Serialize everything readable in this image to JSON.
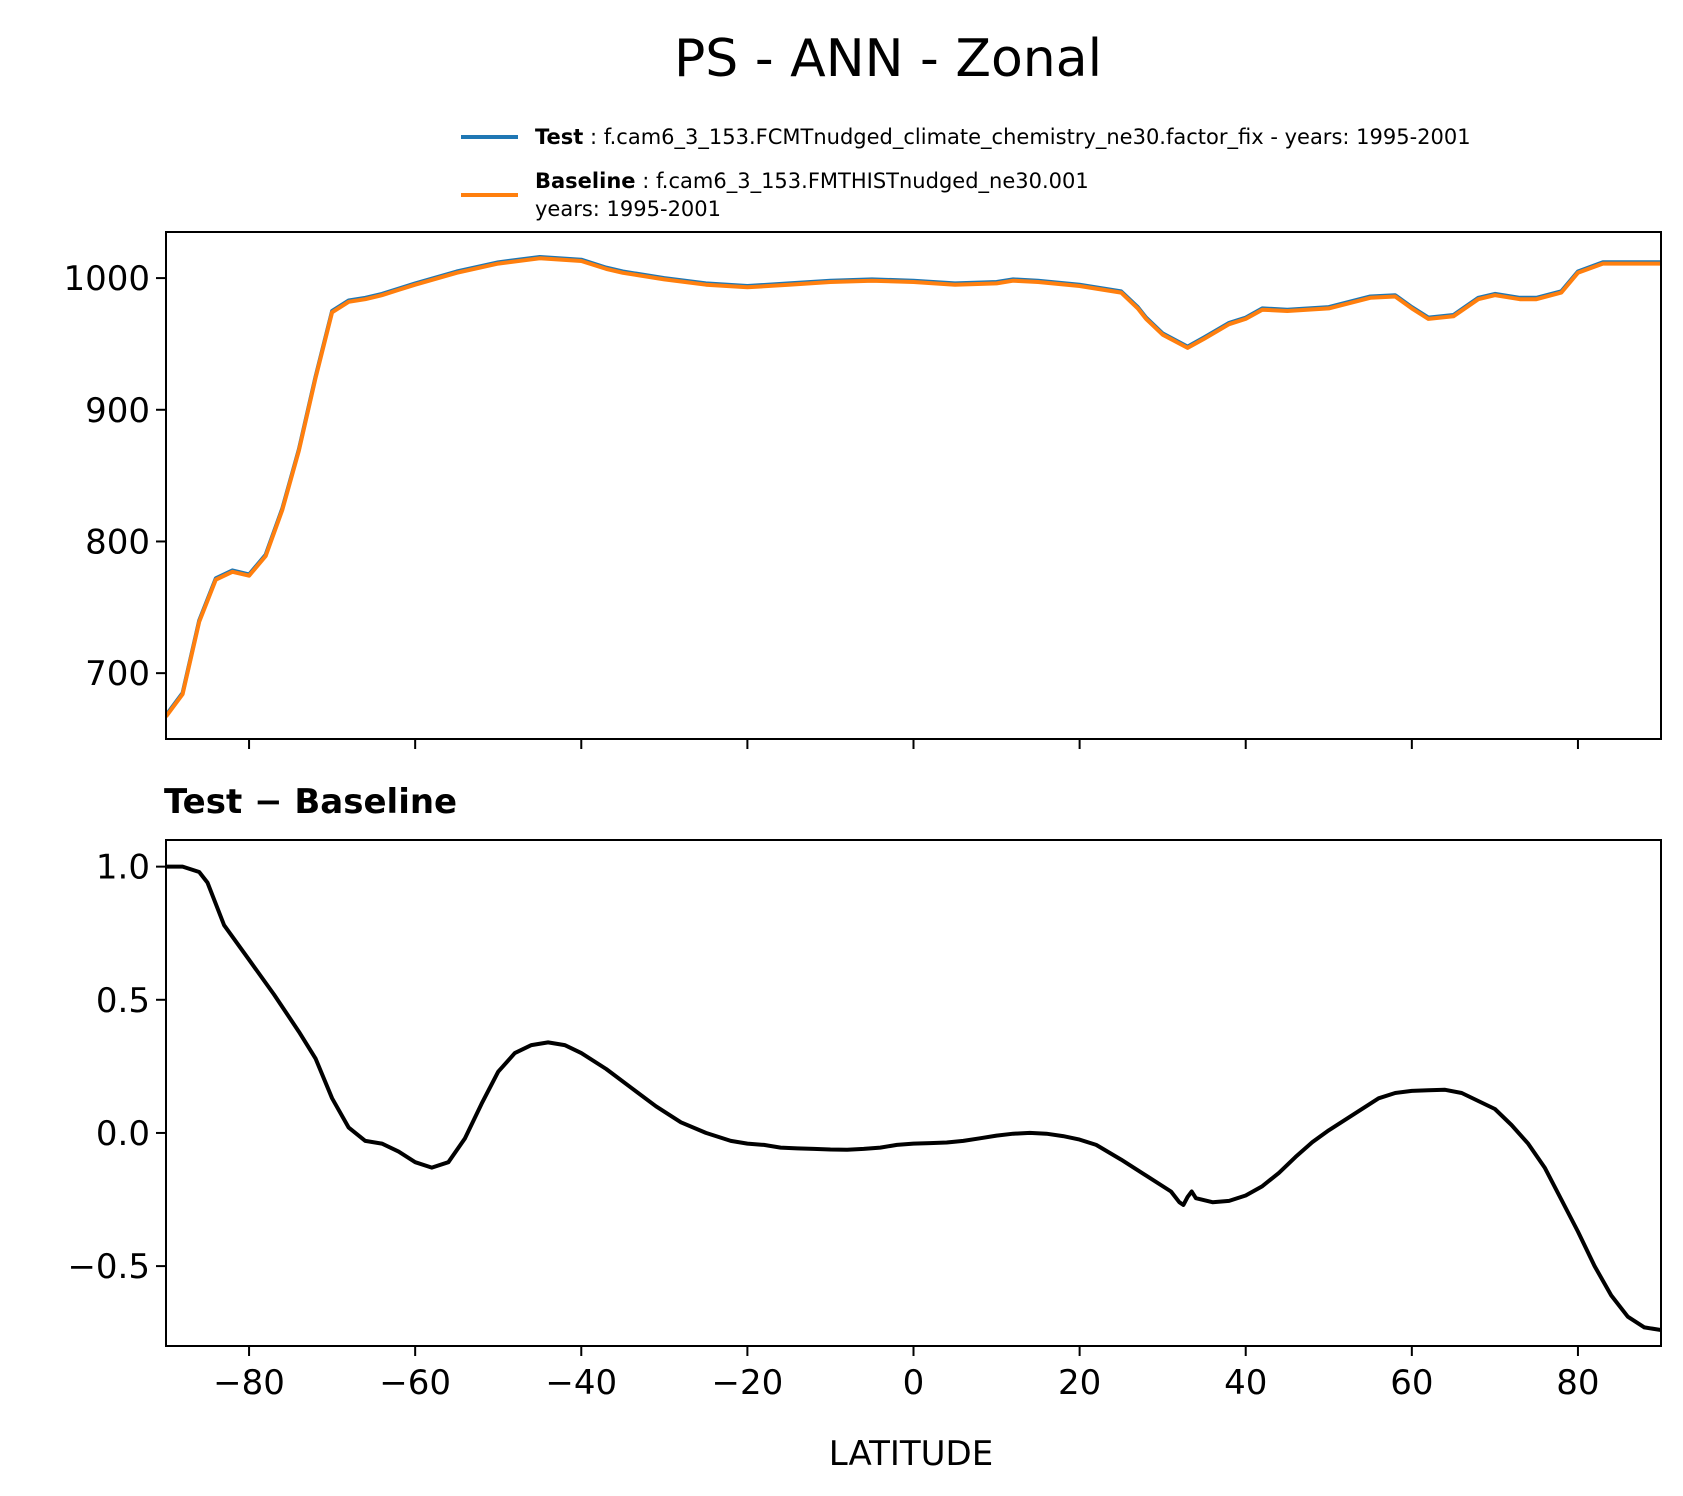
{
  "chart_data": {
    "type": "line",
    "title": "PS - ANN - Zonal",
    "legend": {
      "placement": "top-right",
      "entries": [
        {
          "label": "Test",
          "text": ": f.cam6_3_153.FCMTnudged_climate_chemistry_ne30.factor_fix - years: 1995-2001",
          "text_line2": "",
          "color": "#1f77b4"
        },
        {
          "label": "Baseline",
          "text": ": f.cam6_3_153.FMTHISTnudged_ne30.001",
          "text_line2": "years: 1995-2001",
          "color": "#ff7f0e"
        }
      ]
    },
    "xlabel": "LATITUDE",
    "xlim": [
      -90,
      90
    ],
    "xticks": [
      -80,
      -60,
      -40,
      -20,
      0,
      20,
      40,
      60,
      80
    ],
    "xtick_labels": [
      "−80",
      "−60",
      "−40",
      "−20",
      "0",
      "20",
      "40",
      "60",
      "80"
    ],
    "panels": [
      {
        "id": "top",
        "title": "",
        "ylim": [
          650,
          1035
        ],
        "yticks": [
          700,
          800,
          900,
          1000
        ],
        "ytick_labels": [
          "700",
          "800",
          "900",
          "1000"
        ],
        "series": [
          {
            "name": "Test",
            "color": "#1f77b4",
            "x": [
              -90,
              -88,
              -86,
              -84,
              -82,
              -80,
              -78,
              -76,
              -74,
              -72,
              -70,
              -68,
              -66,
              -64,
              -62,
              -60,
              -55,
              -50,
              -45,
              -40,
              -37,
              -35,
              -30,
              -25,
              -20,
              -15,
              -10,
              -5,
              0,
              5,
              10,
              12,
              15,
              20,
              25,
              27,
              28,
              30,
              33,
              35,
              38,
              40,
              42,
              45,
              50,
              55,
              58,
              60,
              62,
              65,
              68,
              70,
              73,
              75,
              78,
              80,
              83,
              85,
              88,
              90
            ],
            "y": [
              668,
              685,
              740,
              772,
              778,
              775,
              790,
              825,
              870,
              925,
              975,
              983,
              985,
              988,
              992,
              996,
              1005,
              1012,
              1016,
              1014,
              1008,
              1005,
              1000,
              996,
              994,
              996,
              998,
              999,
              998,
              996,
              997,
              999,
              998,
              995,
              990,
              978,
              970,
              958,
              948,
              955,
              966,
              970,
              977,
              976,
              978,
              986,
              987,
              978,
              970,
              972,
              985,
              988,
              985,
              985,
              990,
              1005,
              1012,
              1012,
              1012,
              1012
            ]
          },
          {
            "name": "Baseline",
            "color": "#ff7f0e",
            "x": [
              -90,
              -88,
              -86,
              -84,
              -82,
              -80,
              -78,
              -76,
              -74,
              -72,
              -70,
              -68,
              -66,
              -64,
              -62,
              -60,
              -55,
              -50,
              -45,
              -40,
              -37,
              -35,
              -30,
              -25,
              -20,
              -15,
              -10,
              -5,
              0,
              5,
              10,
              12,
              15,
              20,
              25,
              27,
              28,
              30,
              33,
              35,
              38,
              40,
              42,
              45,
              50,
              55,
              58,
              60,
              62,
              65,
              68,
              70,
              73,
              75,
              78,
              80,
              83,
              85,
              88,
              90
            ],
            "y": [
              667,
              684,
              739,
              771,
              777,
              774,
              789,
              824,
              869,
              924,
              974,
              982,
              984,
              987,
              991,
              995,
              1004,
              1011,
              1015,
              1013,
              1007,
              1004,
              999,
              995,
              993,
              995,
              997,
              998,
              997,
              995,
              996,
              998,
              997,
              994,
              989,
              977,
              969,
              957,
              947,
              954,
              965,
              969,
              976,
              975,
              977,
              985,
              986,
              977,
              969,
              971,
              984,
              987,
              984,
              984,
              989,
              1004,
              1011,
              1011,
              1011,
              1011
            ]
          }
        ]
      },
      {
        "id": "bottom",
        "title": "Test − Baseline",
        "ylim": [
          -0.8,
          1.1
        ],
        "yticks": [
          -0.5,
          0.0,
          0.5,
          1.0
        ],
        "ytick_labels": [
          "−0.5",
          "0.0",
          "0.5",
          "1.0"
        ],
        "series": [
          {
            "name": "",
            "color": "#000000",
            "x": [
              -90,
              -88,
              -86,
              -85,
              -83,
              -80,
              -77,
              -74,
              -72,
              -70,
              -68,
              -66,
              -64,
              -62,
              -60,
              -58,
              -56,
              -54,
              -52,
              -50,
              -48,
              -46,
              -44,
              -42,
              -40,
              -37,
              -34,
              -31,
              -28,
              -25,
              -22,
              -20,
              -18,
              -16,
              -14,
              -12,
              -10,
              -8,
              -6,
              -4,
              -2,
              0,
              2,
              4,
              6,
              8,
              10,
              12,
              14,
              16,
              18,
              20,
              22,
              25,
              28,
              31,
              32,
              32.5,
              33,
              33.5,
              34,
              36,
              38,
              40,
              42,
              44,
              46,
              48,
              50,
              53,
              56,
              58,
              60,
              62,
              64,
              66,
              68,
              70,
              72,
              74,
              76,
              78,
              80,
              82,
              84,
              86,
              88,
              90
            ],
            "y": [
              1.0,
              1.0,
              0.98,
              0.94,
              0.78,
              0.65,
              0.52,
              0.38,
              0.28,
              0.13,
              0.02,
              -0.03,
              -0.04,
              -0.07,
              -0.11,
              -0.13,
              -0.11,
              -0.02,
              0.11,
              0.23,
              0.3,
              0.33,
              0.34,
              0.33,
              0.3,
              0.24,
              0.17,
              0.1,
              0.04,
              0.0,
              -0.03,
              -0.04,
              -0.045,
              -0.055,
              -0.058,
              -0.06,
              -0.062,
              -0.063,
              -0.06,
              -0.055,
              -0.045,
              -0.04,
              -0.038,
              -0.036,
              -0.03,
              -0.02,
              -0.01,
              -0.003,
              0.0,
              -0.003,
              -0.012,
              -0.025,
              -0.045,
              -0.1,
              -0.16,
              -0.22,
              -0.26,
              -0.27,
              -0.24,
              -0.22,
              -0.245,
              -0.26,
              -0.255,
              -0.235,
              -0.2,
              -0.15,
              -0.09,
              -0.035,
              0.01,
              0.07,
              0.13,
              0.15,
              0.158,
              0.16,
              0.162,
              0.15,
              0.12,
              0.09,
              0.03,
              -0.04,
              -0.13,
              -0.25,
              -0.37,
              -0.5,
              -0.61,
              -0.69,
              -0.73,
              -0.74
            ]
          }
        ]
      }
    ]
  }
}
